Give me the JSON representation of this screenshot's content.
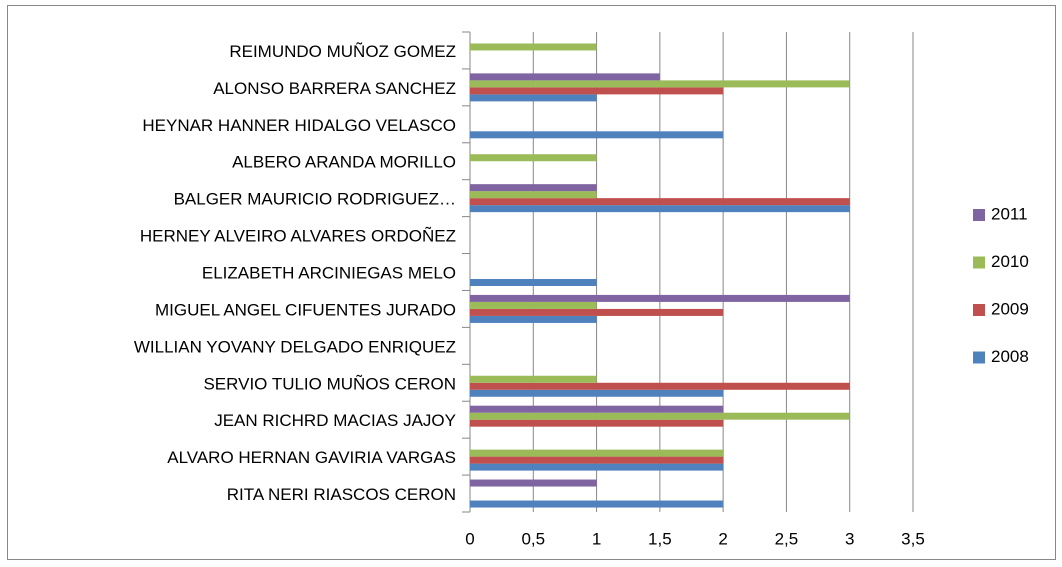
{
  "chart_data": {
    "type": "bar",
    "orientation": "horizontal",
    "categories": [
      "RITA NERI RIASCOS CERON",
      "ALVARO HERNAN GAVIRIA VARGAS",
      "JEAN RICHRD MACIAS JAJOY",
      "SERVIO TULIO MUÑOS CERON",
      "WILLIAN YOVANY DELGADO ENRIQUEZ",
      "MIGUEL ANGEL CIFUENTES JURADO",
      "ELIZABETH ARCINIEGAS MELO",
      "HERNEY ALVEIRO ALVARES ORDOÑEZ",
      "BALGER MAURICIO RODRIGUEZ…",
      "ALBERO ARANDA MORILLO",
      "HEYNAR HANNER HIDALGO VELASCO",
      "ALONSO BARRERA SANCHEZ",
      "REIMUNDO MUÑOZ GOMEZ"
    ],
    "series": [
      {
        "name": "2008",
        "color": "#4f81bd",
        "values": [
          2,
          2,
          0,
          2,
          0,
          1,
          1,
          0,
          3,
          0,
          2,
          1,
          0
        ]
      },
      {
        "name": "2009",
        "color": "#c0504d",
        "values": [
          0,
          2,
          2,
          3,
          0,
          2,
          0,
          0,
          3,
          0,
          0,
          2,
          0
        ]
      },
      {
        "name": "2010",
        "color": "#9bbb59",
        "values": [
          0,
          2,
          3,
          1,
          0,
          1,
          0,
          0,
          1,
          1,
          0,
          3,
          1
        ]
      },
      {
        "name": "2011",
        "color": "#8064a2",
        "values": [
          1,
          0,
          2,
          0,
          0,
          3,
          0,
          0,
          1,
          0,
          0,
          1.5,
          0
        ]
      }
    ],
    "xlim": [
      0,
      3.5
    ],
    "xticks": [
      0,
      {
        "value": 0.5,
        "label": "0,5"
      },
      1,
      {
        "value": 1.5,
        "label": "1,5"
      },
      2,
      {
        "value": 2.5,
        "label": "2,5"
      },
      3,
      {
        "value": 3.5,
        "label": "3,5"
      }
    ],
    "grid": true,
    "legend": "right"
  }
}
